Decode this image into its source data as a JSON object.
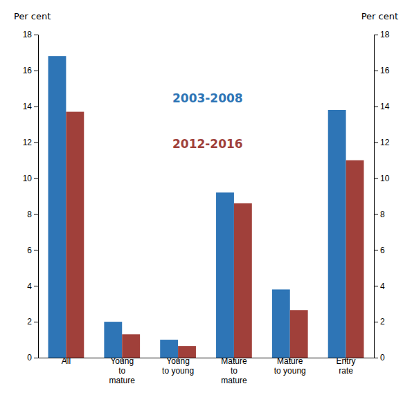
{
  "chart_data": {
    "type": "bar",
    "categories": [
      "All",
      "Young\nto\nmature",
      "Young\nto young",
      "Mature\nto\nmature",
      "Mature\nto young",
      "Entry\nrate"
    ],
    "series": [
      {
        "name": "2003-2008",
        "color": "#2E75B6",
        "values": [
          16.8,
          2.0,
          1.0,
          9.2,
          3.8,
          13.8
        ]
      },
      {
        "name": "2012-2016",
        "color": "#A0403A",
        "values": [
          13.7,
          1.3,
          0.65,
          8.6,
          2.65,
          11.0
        ]
      }
    ],
    "ylabel": "Per cent",
    "y2label": "Per cent",
    "ylim": [
      0,
      18
    ],
    "yticks": [
      0,
      2,
      4,
      6,
      8,
      10,
      12,
      14,
      16,
      18
    ],
    "y2lim": [
      0,
      18
    ],
    "y2ticks": [
      0,
      2,
      4,
      6,
      8,
      10,
      12,
      14,
      16,
      18
    ],
    "legend": "top",
    "grid": false
  }
}
